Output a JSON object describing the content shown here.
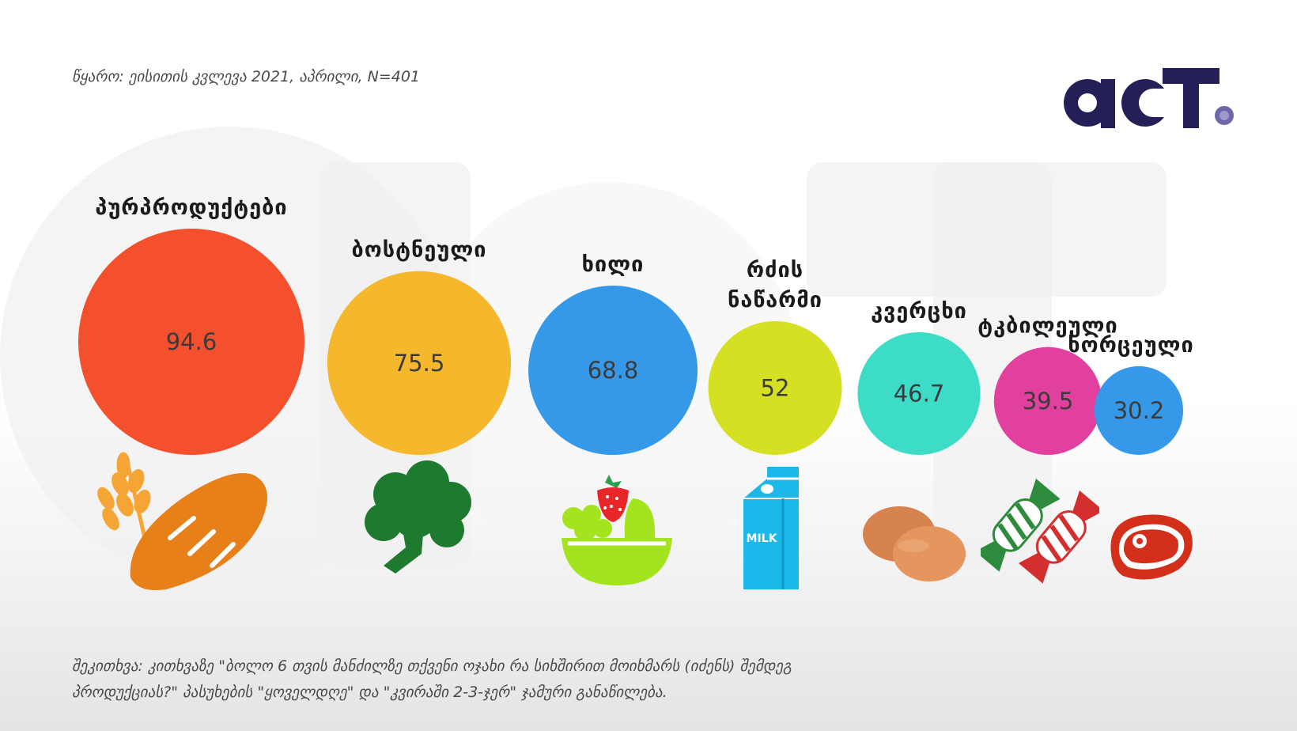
{
  "source": "წყარო: ეისითის კვლევა 2021, აპრილი, N=401",
  "logo": {
    "text": "act",
    "icon": "act-logo"
  },
  "question": {
    "line1": "შეკითხვა: კითხვაზე \"ბოლო 6 თვის მანძილზე თქვენი ოჯახი რა სიხშირით მოიხმარს (იძენს) შემდეგ",
    "line2": "პროდუქციას?\" პასუხების \"ყოველდღე\" და \"კვირაში 2-3-ჯერ\" ჯამური განაწილება."
  },
  "chart_data": {
    "type": "bubble",
    "categories": [
      {
        "label": [
          "პურპროდუქტები"
        ],
        "value": 94.6,
        "display": "94.6",
        "color": "#F4502E",
        "icon": "bread-icon"
      },
      {
        "label": [
          "ბოსტნეული"
        ],
        "value": 75.5,
        "display": "75.5",
        "color": "#F5B82C",
        "icon": "broccoli-icon"
      },
      {
        "label": [
          "ხილი"
        ],
        "value": 68.8,
        "display": "68.8",
        "color": "#3598E8",
        "icon": "fruit-bowl-icon"
      },
      {
        "label": [
          "რძის",
          "ნაწარმი"
        ],
        "value": 52,
        "display": "52",
        "color": "#D5E023",
        "icon": "milk-carton-icon"
      },
      {
        "label": [
          "კვერცხი"
        ],
        "value": 46.7,
        "display": "46.7",
        "color": "#3DDCC6",
        "icon": "eggs-icon"
      },
      {
        "label": [
          "ტკბილეული"
        ],
        "value": 39.5,
        "display": "39.5",
        "color": "#E2409E",
        "icon": "candy-icon"
      },
      {
        "label": [
          "ხორცეული"
        ],
        "value": 30.2,
        "display": "30.2",
        "color": "#3598E8",
        "icon": "meat-icon"
      }
    ]
  }
}
